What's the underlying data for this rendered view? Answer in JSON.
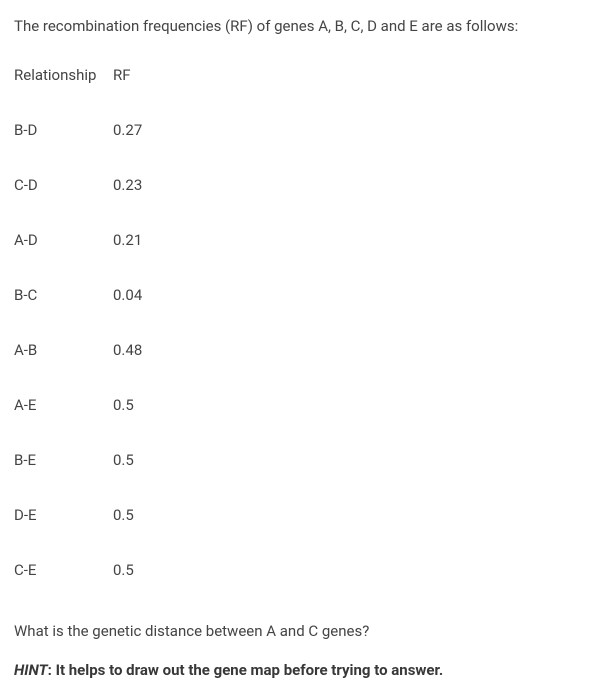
{
  "intro": "The recombination frequencies (RF) of genes A, B, C, D and E are as follows:",
  "headers": {
    "relationship": "Relationship",
    "rf": "RF"
  },
  "rows": [
    {
      "relationship": "B-D",
      "rf": "0.27"
    },
    {
      "relationship": "C-D",
      "rf": "0.23"
    },
    {
      "relationship": "A-D",
      "rf": "0.21"
    },
    {
      "relationship": "B-C",
      "rf": "0.04"
    },
    {
      "relationship": "A-B",
      "rf": "0.48"
    },
    {
      "relationship": "A-E",
      "rf": "0.5"
    },
    {
      "relationship": "B-E",
      "rf": "0.5"
    },
    {
      "relationship": "D-E",
      "rf": "0.5"
    },
    {
      "relationship": "C-E",
      "rf": "0.5"
    }
  ],
  "question": "What is the genetic distance between A and C genes?",
  "hint": {
    "label": "HINT",
    "separator": ": ",
    "text": "It helps to draw out the gene map before trying to answer."
  }
}
